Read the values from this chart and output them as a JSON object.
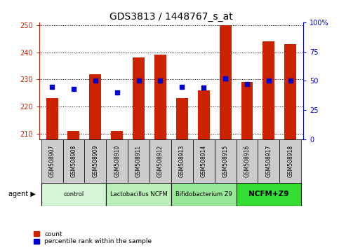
{
  "title": "GDS3813 / 1448767_s_at",
  "samples": [
    "GSM508907",
    "GSM508908",
    "GSM508909",
    "GSM508910",
    "GSM508911",
    "GSM508912",
    "GSM508913",
    "GSM508914",
    "GSM508915",
    "GSM508916",
    "GSM508917",
    "GSM508918"
  ],
  "counts": [
    223,
    211,
    232,
    211,
    238,
    239,
    223,
    226,
    250,
    229,
    244,
    243
  ],
  "percentiles": [
    45,
    43,
    50,
    40,
    50,
    50,
    45,
    44,
    52,
    47,
    50,
    50
  ],
  "ylim_left": [
    208,
    251
  ],
  "ylim_right": [
    0,
    100
  ],
  "yticks_left": [
    210,
    220,
    230,
    240,
    250
  ],
  "ytick_labels_left": [
    "210",
    "220",
    "230",
    "240",
    "250"
  ],
  "yticks_right": [
    0,
    25,
    50,
    75,
    100
  ],
  "ytick_labels_right": [
    "0",
    "25",
    "50",
    "75",
    "100%"
  ],
  "bar_color": "#cc2200",
  "dot_color": "#0000cc",
  "bar_bottom": 208,
  "groups": [
    {
      "label": "control",
      "start": 0,
      "end": 3,
      "color": "#d6f5d6"
    },
    {
      "label": "Lactobacillus NCFM",
      "start": 3,
      "end": 6,
      "color": "#bbf0bb"
    },
    {
      "label": "Bifidobacterium Z9",
      "start": 6,
      "end": 9,
      "color": "#99e899"
    },
    {
      "label": "NCFM+Z9",
      "start": 9,
      "end": 12,
      "color": "#33dd33"
    }
  ],
  "legend_items": [
    {
      "label": "count",
      "color": "#cc2200"
    },
    {
      "label": "percentile rank within the sample",
      "color": "#0000cc"
    }
  ],
  "agent_label": "agent",
  "title_fontsize": 10,
  "tick_fontsize": 7,
  "label_fontsize": 5.5,
  "group_fontsize": 6,
  "bar_width": 0.55,
  "sample_box_color": "#cccccc",
  "background_color": "#ffffff"
}
